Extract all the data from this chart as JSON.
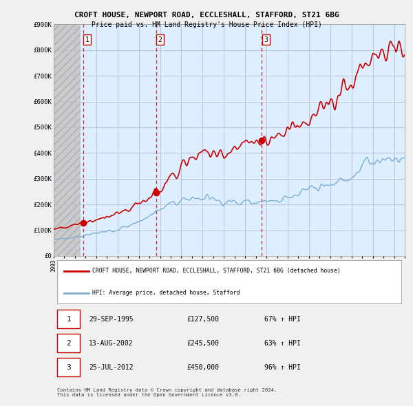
{
  "title": "CROFT HOUSE, NEWPORT ROAD, ECCLESHALL, STAFFORD, ST21 6BG",
  "subtitle": "Price paid vs. HM Land Registry's House Price Index (HPI)",
  "ylim": [
    0,
    900000
  ],
  "yticks": [
    0,
    100000,
    200000,
    300000,
    400000,
    500000,
    600000,
    700000,
    800000,
    900000
  ],
  "ytick_labels": [
    "£0",
    "£100K",
    "£200K",
    "£300K",
    "£400K",
    "£500K",
    "£600K",
    "£700K",
    "£800K",
    "£900K"
  ],
  "purchases": [
    {
      "date_num": 1995.75,
      "price": 127500,
      "label": "1"
    },
    {
      "date_num": 2002.62,
      "price": 245500,
      "label": "2"
    },
    {
      "date_num": 2012.56,
      "price": 450000,
      "label": "3"
    }
  ],
  "purchase_color": "#cc0000",
  "hpi_color": "#7aadd4",
  "dashed_line_color": "#cc0000",
  "background_color": "#f0f0f0",
  "plot_bg_color": "#ddeeff",
  "legend_line1": "CROFT HOUSE, NEWPORT ROAD, ECCLESHALL, STAFFORD, ST21 6BG (detached house)",
  "legend_line2": "HPI: Average price, detached house, Stafford",
  "table_data": [
    [
      "1",
      "29-SEP-1995",
      "£127,500",
      "67% ↑ HPI"
    ],
    [
      "2",
      "13-AUG-2002",
      "£245,500",
      "63% ↑ HPI"
    ],
    [
      "3",
      "25-JUL-2012",
      "£450,000",
      "96% ↑ HPI"
    ]
  ],
  "footer": "Contains HM Land Registry data © Crown copyright and database right 2024.\nThis data is licensed under the Open Government Licence v3.0.",
  "xmin": 1993,
  "xmax": 2026,
  "hatch_end": 1995.5
}
